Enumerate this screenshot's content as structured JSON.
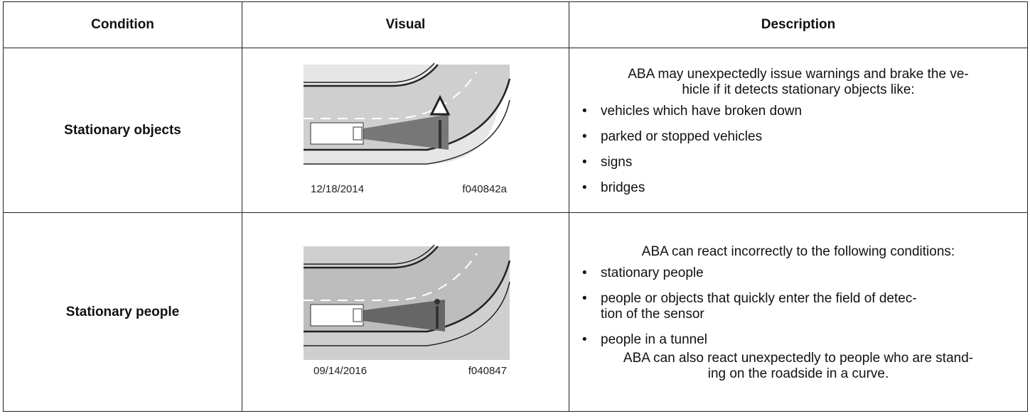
{
  "table": {
    "header": [
      "Condition",
      "Visual",
      "Description"
    ],
    "rows": [
      {
        "condition": "Stationary objects",
        "visual": {
          "date": "12/18/2014",
          "code": "f040842a"
        },
        "description": {
          "intro": "ABA may unexpectedly issue warnings and brake the ve-\nhicle if it detects stationary objects like:",
          "bullets": [
            "vehicles which have broken down",
            "parked or stopped vehicles",
            "signs",
            "bridges"
          ]
        }
      },
      {
        "condition": "Stationary people",
        "visual": {
          "date": "09/14/2016",
          "code": "f040847"
        },
        "description": {
          "intro": "ABA can react incorrectly to the following conditions:",
          "bullets": [
            "stationary people",
            "people or objects that quickly enter the field of detec-\ntion of the sensor",
            "people in a tunnel"
          ],
          "outro": "ABA can also react unexpectedly to people who are stand-\ning on the roadside in a curve."
        }
      }
    ]
  }
}
